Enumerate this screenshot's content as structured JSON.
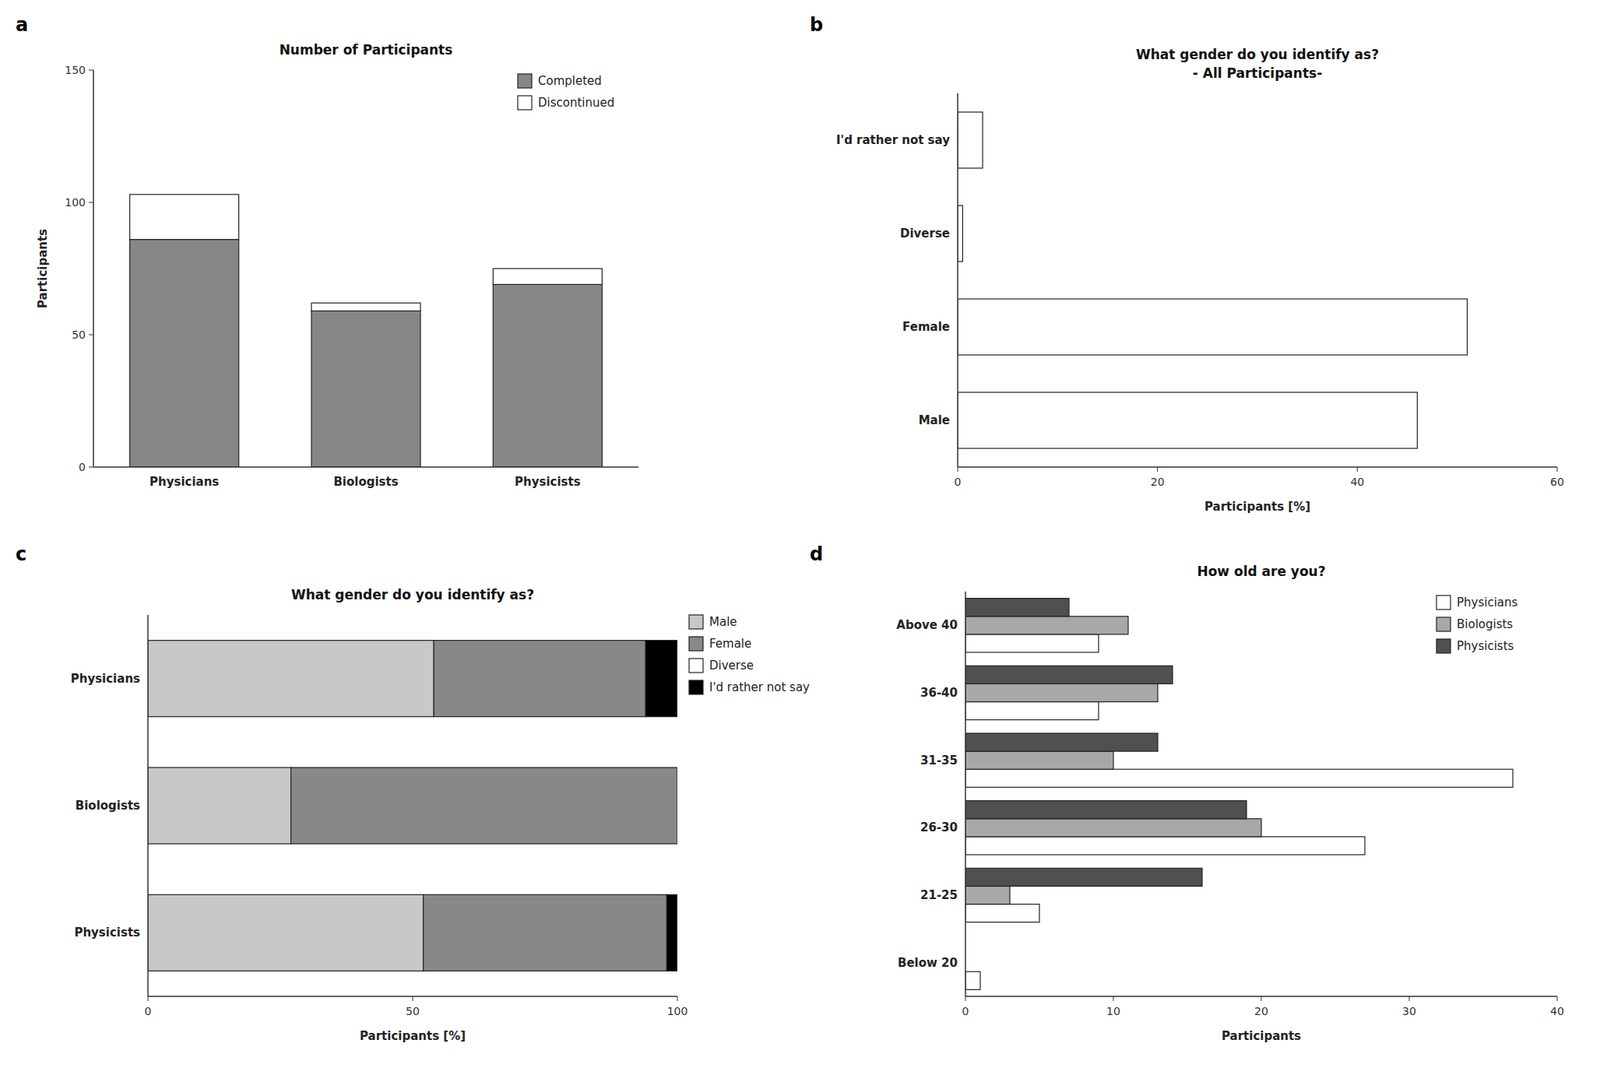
{
  "chart_data": [
    {
      "type": "bar",
      "title": "Number of Participants",
      "annotations": [
        "a"
      ],
      "categories": [
        "Physicians",
        "Biologists",
        "Physicists"
      ],
      "series": [
        {
          "name": "Completed",
          "color": "#878787",
          "values": [
            86,
            59,
            69
          ]
        },
        {
          "name": "Discontinued",
          "color": "#ffffff",
          "values": [
            17,
            3,
            6
          ]
        }
      ],
      "stacked": true,
      "ylabel": "Participants",
      "ylim": [
        0,
        150
      ],
      "yticks": [
        0,
        50,
        100,
        150
      ],
      "grid": false,
      "legend": "upper right"
    },
    {
      "type": "bar",
      "title": "What gender do you identify as?\n- All Participants-",
      "annotations": [
        "b"
      ],
      "orientation": "horizontal",
      "categories": [
        "Male",
        "Female",
        "Diverse",
        "I'd rather not say"
      ],
      "values": [
        46,
        51,
        0.5,
        2.5
      ],
      "color": "#ffffff",
      "xlabel": "Participants [%]",
      "xlim": [
        0,
        60
      ],
      "xticks": [
        0,
        20,
        40,
        60
      ],
      "grid": false
    },
    {
      "type": "bar",
      "title": "What gender do you identify as?",
      "annotations": [
        "c"
      ],
      "orientation": "horizontal",
      "stacked": true,
      "categories": [
        "Physicists",
        "Biologists",
        "Physicians"
      ],
      "series": [
        {
          "name": "Male",
          "color": "#c8c8c8",
          "values": [
            52,
            27,
            54
          ]
        },
        {
          "name": "Female",
          "color": "#888888",
          "values": [
            46,
            73,
            40
          ]
        },
        {
          "name": "Diverse",
          "color": "#ffffff",
          "values": [
            0,
            0,
            0
          ]
        },
        {
          "name": "I'd rather not say",
          "color": "#000000",
          "values": [
            2,
            0,
            6
          ]
        }
      ],
      "xlabel": "Participants [%]",
      "xlim": [
        0,
        100
      ],
      "xticks": [
        0,
        50,
        100
      ],
      "grid": false,
      "legend": "right"
    },
    {
      "type": "bar",
      "title": "How old are you?",
      "annotations": [
        "d"
      ],
      "orientation": "horizontal",
      "categories": [
        "Below 20",
        "21-25",
        "26-30",
        "31-35",
        "36-40",
        "Above 40"
      ],
      "series": [
        {
          "name": "Physicians",
          "color": "#ffffff",
          "values": [
            1,
            5,
            27,
            37,
            9,
            9
          ]
        },
        {
          "name": "Biologists",
          "color": "#a8a8a8",
          "values": [
            0,
            3,
            20,
            10,
            13,
            11
          ]
        },
        {
          "name": "Physicists",
          "color": "#505050",
          "values": [
            0,
            16,
            19,
            13,
            14,
            7
          ]
        }
      ],
      "xlabel": "Participants",
      "xlim": [
        0,
        40
      ],
      "xticks": [
        0,
        10,
        20,
        30,
        40
      ],
      "grid": false,
      "legend": "upper right"
    }
  ]
}
